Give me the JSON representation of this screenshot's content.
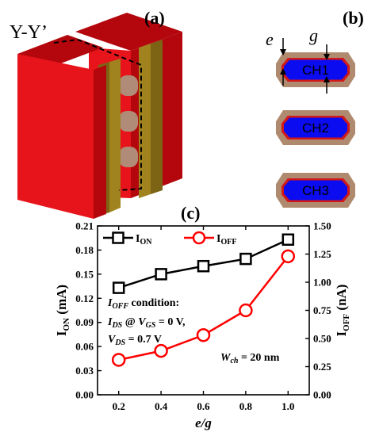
{
  "panels": {
    "a": "(a)",
    "b": "(b)",
    "c": "(c)"
  },
  "device": {
    "cut_label": "Y-Y’",
    "colors": {
      "gate": "#e8141b",
      "gate_side": "#b3070d",
      "spacer": "#a0821e",
      "spacer_dark": "#7d6414",
      "channel": "#b08c78"
    }
  },
  "cross_section": {
    "e_label": "e",
    "g_label": "g",
    "channels": [
      "CH1",
      "CH2",
      "CH3"
    ],
    "colors": {
      "outer": "#b08a6e",
      "liner": "#d21818",
      "core": "#0c0cf0"
    }
  },
  "chart_data": {
    "type": "line",
    "x": [
      0.2,
      0.4,
      0.6,
      0.8,
      1.0
    ],
    "xlabel": "e/g",
    "xlim": [
      0.1,
      1.1
    ],
    "xticks": [
      "0.2",
      "0.4",
      "0.6",
      "0.8",
      "1.0"
    ],
    "y_left": {
      "label_main": "I",
      "label_sub": "ON",
      "label_unit": " (mA)",
      "lim": [
        0,
        0.21
      ],
      "ticks": [
        "0.00",
        "0.03",
        "0.06",
        "0.09",
        "0.12",
        "0.15",
        "0.18",
        "0.21"
      ]
    },
    "y_right": {
      "label_main": "I",
      "label_sub": "OFF",
      "label_unit": " (nA)",
      "lim": [
        0,
        1.5
      ],
      "ticks": [
        "0.00",
        "0.25",
        "0.50",
        "0.75",
        "1.00",
        "1.25",
        "1.50"
      ]
    },
    "series": [
      {
        "name_main": "I",
        "name_sub": "ON",
        "axis": "left",
        "marker": "square",
        "color": "#000000",
        "values": [
          0.133,
          0.15,
          0.16,
          0.169,
          0.193
        ]
      },
      {
        "name_main": "I",
        "name_sub": "OFF",
        "axis": "right",
        "marker": "circle",
        "color": "#ff0000",
        "values": [
          0.31,
          0.39,
          0.53,
          0.75,
          1.23
        ]
      }
    ],
    "legend": "top",
    "annotations": {
      "line1_main": "I",
      "line1_sub": "OFF",
      "line1_rest": " condition:",
      "line2_a": "I",
      "line2_a_sub": "DS",
      "line2_b": " @ ",
      "line2_c": "V",
      "line2_c_sub": "GS",
      "line2_d": " = 0 V,",
      "line3_a": "V",
      "line3_a_sub": "DS",
      "line3_b": " = 0.7 V",
      "wch_main": "W",
      "wch_sub": "ch",
      "wch_rest": " = 20 nm"
    }
  }
}
